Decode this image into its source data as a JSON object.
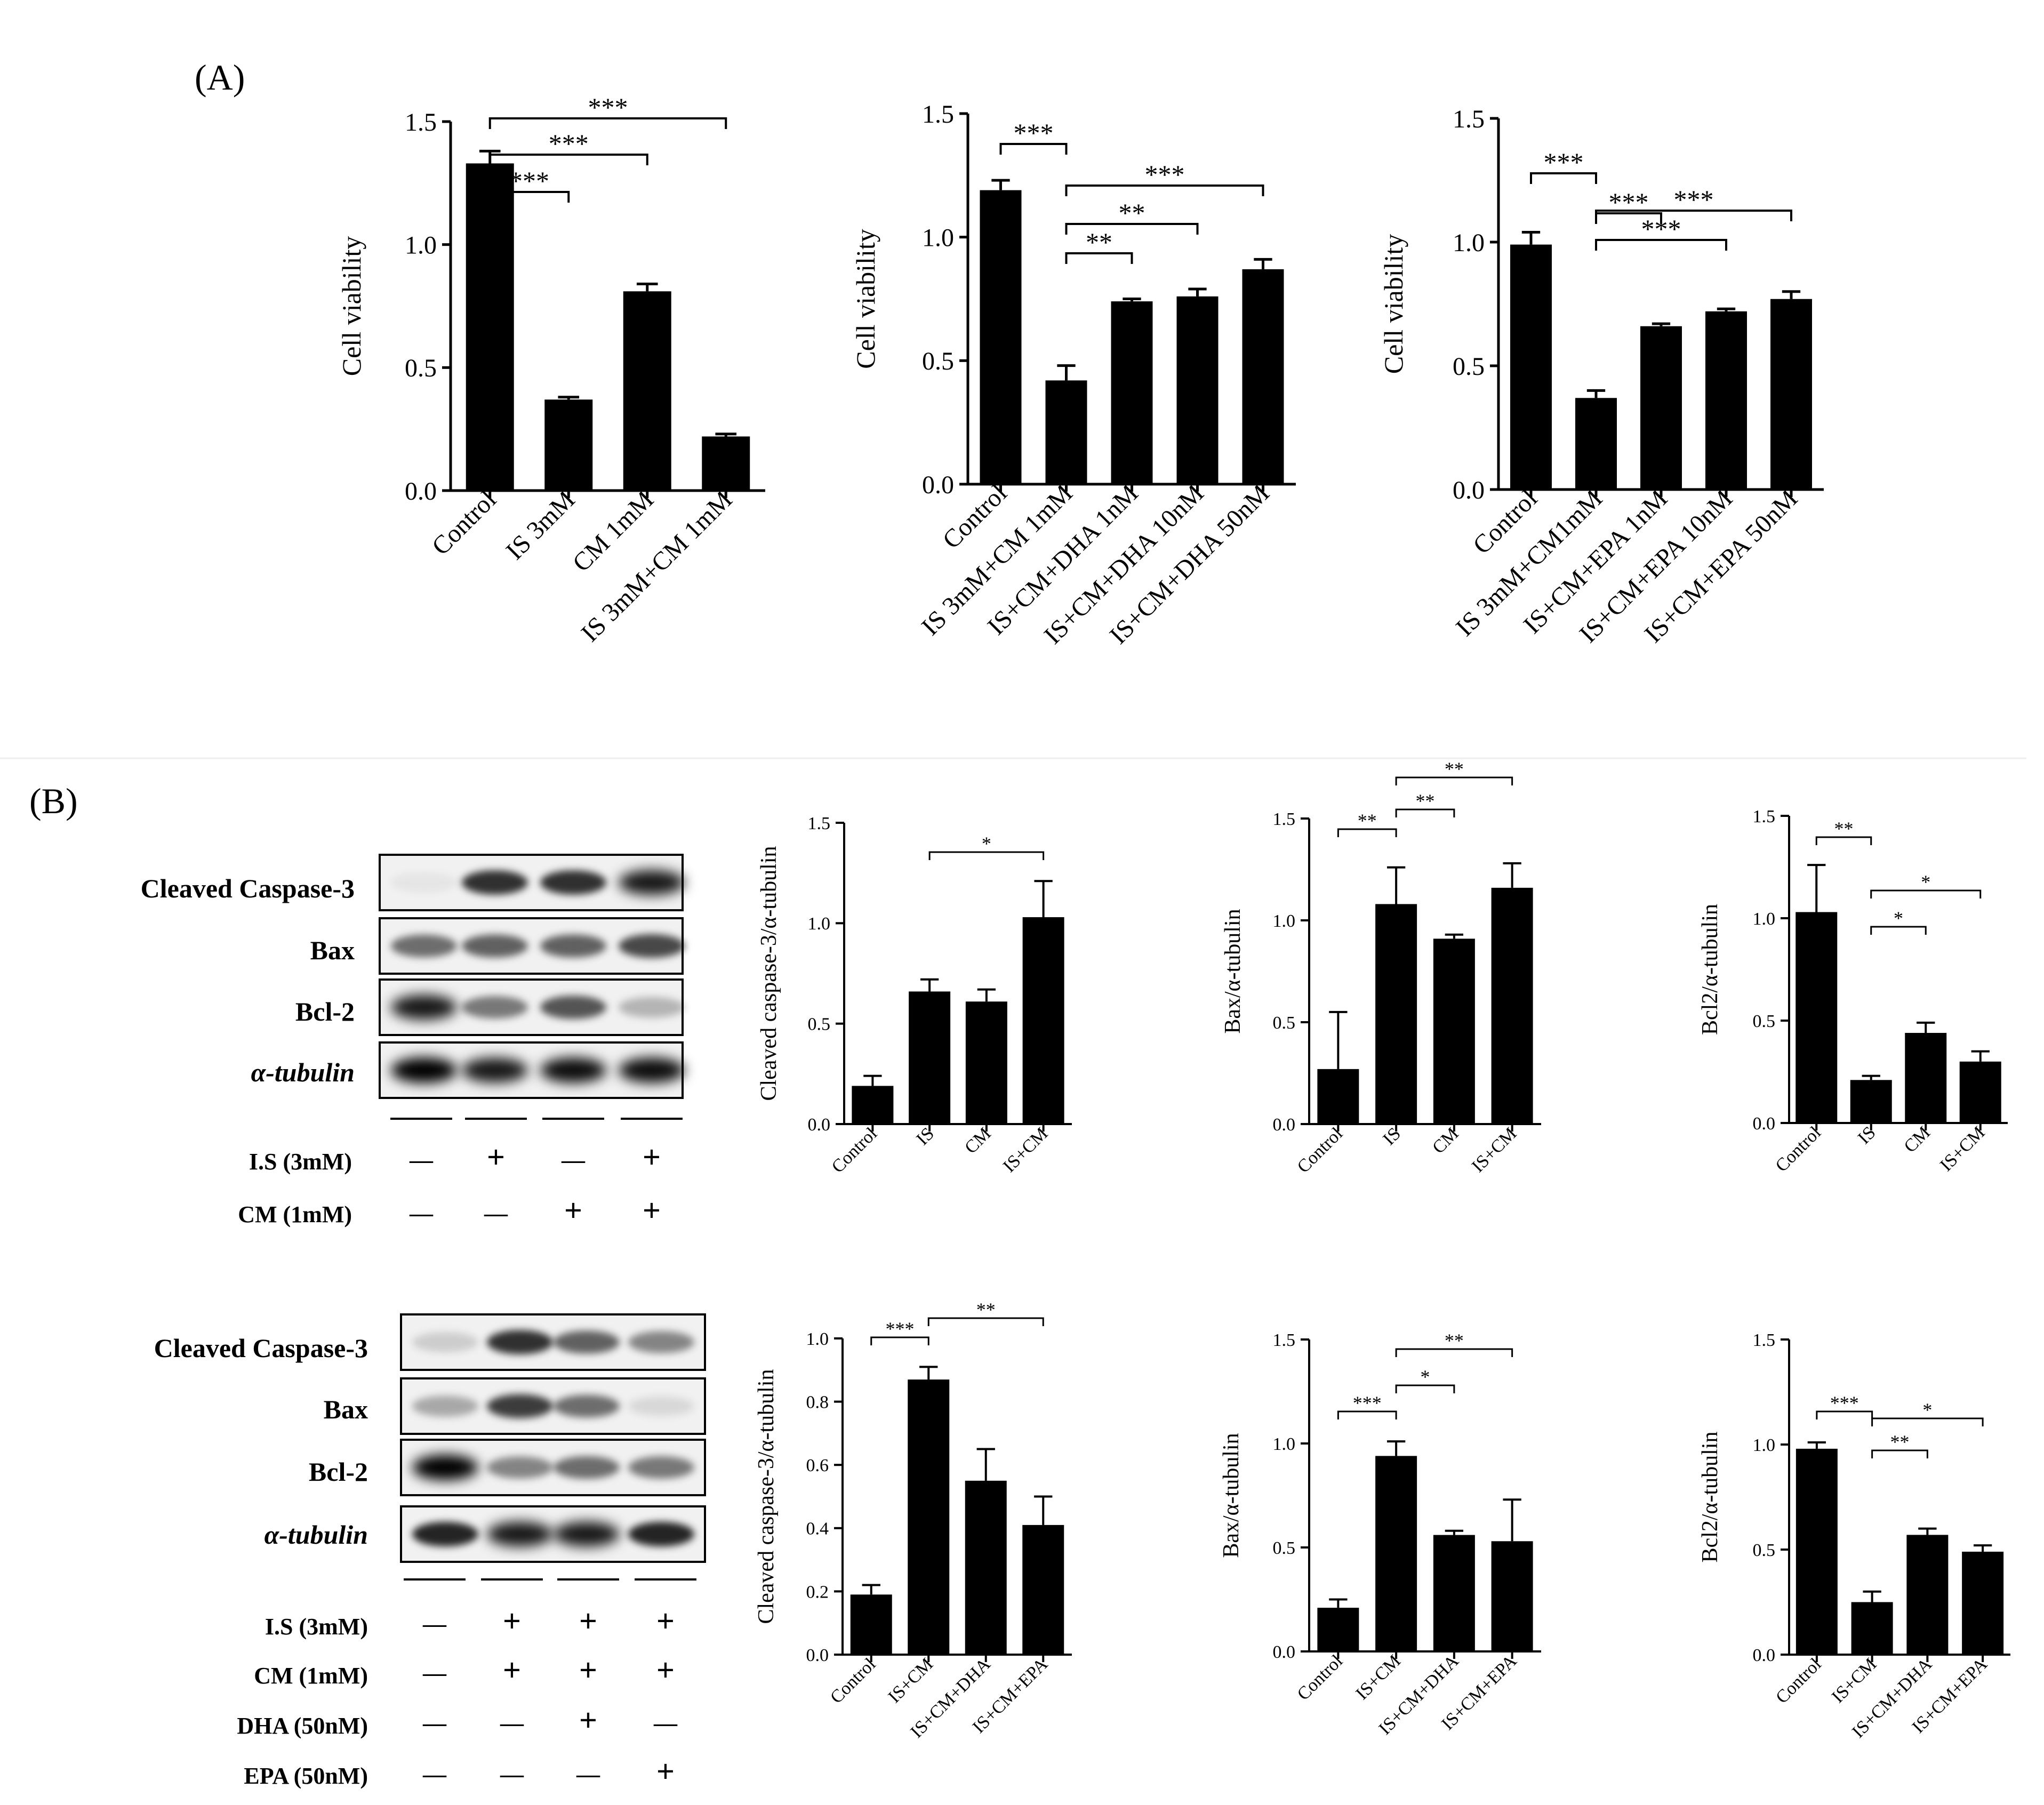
{
  "panel_labels": [
    "(A)",
    "(B)"
  ],
  "blot_rows_1": {
    "proteins": [
      "Cleaved Caspase-3",
      "Bax",
      "Bcl-2",
      "α-tubulin"
    ],
    "conditions": [
      {
        "label": "I.S (3mM)",
        "marks": [
          "—",
          "+",
          "—",
          "+"
        ]
      },
      {
        "label": "CM (1mM)",
        "marks": [
          "—",
          "—",
          "+",
          "+"
        ]
      }
    ]
  },
  "blot_rows_2": {
    "proteins": [
      "Cleaved Caspase-3",
      "Bax",
      "Bcl-2",
      "α-tubulin"
    ],
    "conditions": [
      {
        "label": "I.S (3mM)",
        "marks": [
          "—",
          "+",
          "+",
          "+"
        ]
      },
      {
        "label": "CM (1mM)",
        "marks": [
          "—",
          "+",
          "+",
          "+"
        ]
      },
      {
        "label": "DHA (50nM)",
        "marks": [
          "—",
          "—",
          "+",
          "—"
        ]
      },
      {
        "label": "EPA (50nM)",
        "marks": [
          "—",
          "—",
          "—",
          "+"
        ]
      }
    ]
  },
  "bar_color": "#000000",
  "chart_data": [
    {
      "id": "a1",
      "type": "bar",
      "ylabel": "Cell viability",
      "ylim": [
        0,
        1.5
      ],
      "yticks": [
        "0.0",
        "0.5",
        "1.0",
        "1.5"
      ],
      "categories": [
        "Control",
        "IS 3mM",
        "CM 1mM",
        "IS 3mM+CM 1mM"
      ],
      "values": [
        1.33,
        0.37,
        0.81,
        0.22
      ],
      "errors": [
        0.05,
        0.01,
        0.03,
        0.01
      ],
      "sig": [
        {
          "from": 0,
          "to": 1,
          "label": "***"
        },
        {
          "from": 0,
          "to": 2,
          "label": "***"
        },
        {
          "from": 0,
          "to": 3,
          "label": "***"
        }
      ]
    },
    {
      "id": "a2",
      "type": "bar",
      "ylabel": "Cell viability",
      "ylim": [
        0,
        1.5
      ],
      "yticks": [
        "0.0",
        "0.5",
        "1.0",
        "1.5"
      ],
      "categories": [
        "Control",
        "IS 3mM+CM 1mM",
        "IS+CM+DHA 1nM",
        "IS+CM+DHA 10nM",
        "IS+CM+DHA 50nM"
      ],
      "values": [
        1.19,
        0.42,
        0.74,
        0.76,
        0.87
      ],
      "errors": [
        0.04,
        0.06,
        0.01,
        0.03,
        0.04
      ],
      "sig": [
        {
          "from": 0,
          "to": 1,
          "label": "***"
        },
        {
          "from": 1,
          "to": 2,
          "label": "**"
        },
        {
          "from": 1,
          "to": 3,
          "label": "**"
        },
        {
          "from": 1,
          "to": 4,
          "label": "***"
        }
      ]
    },
    {
      "id": "a3",
      "type": "bar",
      "ylabel": "Cell viability",
      "ylim": [
        0,
        1.5
      ],
      "yticks": [
        "0.0",
        "0.5",
        "1.0",
        "1.5"
      ],
      "categories": [
        "Control",
        "IS 3mM+CM1mM",
        "IS+CM+EPA 1nM",
        "IS+CM+EPA 10nM",
        "IS+CM+EPA 50nM"
      ],
      "values": [
        0.99,
        0.37,
        0.66,
        0.72,
        0.77
      ],
      "errors": [
        0.05,
        0.03,
        0.01,
        0.01,
        0.03
      ],
      "sig": [
        {
          "from": 0,
          "to": 1,
          "label": "***"
        },
        {
          "from": 1,
          "to": 2,
          "label": "***"
        },
        {
          "from": 1,
          "to": 3,
          "label": "***"
        },
        {
          "from": 1,
          "to": 4,
          "label": "***"
        }
      ]
    },
    {
      "id": "b1",
      "type": "bar",
      "ylabel": "Cleaved caspase-3/α-tubulin",
      "ylim": [
        0,
        1.5
      ],
      "yticks": [
        "0.0",
        "0.5",
        "1.0",
        "1.5"
      ],
      "categories": [
        "Control",
        "IS",
        "CM",
        "IS+CM"
      ],
      "values": [
        0.19,
        0.66,
        0.61,
        1.03
      ],
      "errors": [
        0.05,
        0.06,
        0.06,
        0.18
      ],
      "sig": [
        {
          "from": 1,
          "to": 3,
          "label": "*"
        }
      ]
    },
    {
      "id": "b2",
      "type": "bar",
      "ylabel": "Bax/α-tubulin",
      "ylim": [
        0,
        1.5
      ],
      "yticks": [
        "0.0",
        "0.5",
        "1.0",
        "1.5"
      ],
      "categories": [
        "Control",
        "IS",
        "CM",
        "IS+CM"
      ],
      "values": [
        0.27,
        1.08,
        0.91,
        1.16
      ],
      "errors": [
        0.28,
        0.18,
        0.02,
        0.12
      ],
      "sig": [
        {
          "from": 0,
          "to": 1,
          "label": "**"
        },
        {
          "from": 1,
          "to": 2,
          "label": "**"
        },
        {
          "from": 1,
          "to": 3,
          "label": "**"
        }
      ]
    },
    {
      "id": "b3",
      "type": "bar",
      "ylabel": "Bcl2/α-tubulin",
      "ylim": [
        0,
        1.5
      ],
      "yticks": [
        "0.0",
        "0.5",
        "1.0",
        "1.5"
      ],
      "categories": [
        "Control",
        "IS",
        "CM",
        "IS+CM"
      ],
      "values": [
        1.03,
        0.21,
        0.44,
        0.3
      ],
      "errors": [
        0.23,
        0.02,
        0.05,
        0.05
      ],
      "sig": [
        {
          "from": 0,
          "to": 1,
          "label": "**"
        },
        {
          "from": 1,
          "to": 2,
          "label": "*"
        },
        {
          "from": 1,
          "to": 3,
          "label": "*"
        }
      ]
    },
    {
      "id": "b4",
      "type": "bar",
      "ylabel": "Cleaved caspase-3/α-tubulin",
      "ylim": [
        0,
        1.0
      ],
      "yticks": [
        "0.0",
        "0.2",
        "0.4",
        "0.6",
        "0.8",
        "1.0"
      ],
      "categories": [
        "Control",
        "IS+CM",
        "IS+CM+DHA",
        "IS+CM+EPA"
      ],
      "values": [
        0.19,
        0.87,
        0.55,
        0.41
      ],
      "errors": [
        0.03,
        0.04,
        0.1,
        0.09
      ],
      "sig": [
        {
          "from": 0,
          "to": 1,
          "label": "***"
        },
        {
          "from": 1,
          "to": 3,
          "label": "**"
        }
      ]
    },
    {
      "id": "b5",
      "type": "bar",
      "ylabel": "Bax/α-tubulin",
      "ylim": [
        0,
        1.5
      ],
      "yticks": [
        "0.0",
        "0.5",
        "1.0",
        "1.5"
      ],
      "categories": [
        "Control",
        "IS+CM",
        "IS+CM+DHA",
        "IS+CM+EPA"
      ],
      "values": [
        0.21,
        0.94,
        0.56,
        0.53
      ],
      "errors": [
        0.04,
        0.07,
        0.02,
        0.2
      ],
      "sig": [
        {
          "from": 0,
          "to": 1,
          "label": "***"
        },
        {
          "from": 1,
          "to": 2,
          "label": "*"
        },
        {
          "from": 1,
          "to": 3,
          "label": "**"
        }
      ]
    },
    {
      "id": "b6",
      "type": "bar",
      "ylabel": "Bcl2/α-tubulin",
      "ylim": [
        0,
        1.5
      ],
      "yticks": [
        "0.0",
        "0.5",
        "1.0",
        "1.5"
      ],
      "categories": [
        "Control",
        "IS+CM",
        "IS+CM+DHA",
        "IS+CM+EPA"
      ],
      "values": [
        0.98,
        0.25,
        0.57,
        0.49
      ],
      "errors": [
        0.03,
        0.05,
        0.03,
        0.03
      ],
      "sig": [
        {
          "from": 0,
          "to": 1,
          "label": "***"
        },
        {
          "from": 1,
          "to": 2,
          "label": "**"
        },
        {
          "from": 1,
          "to": 3,
          "label": "*"
        }
      ]
    }
  ]
}
